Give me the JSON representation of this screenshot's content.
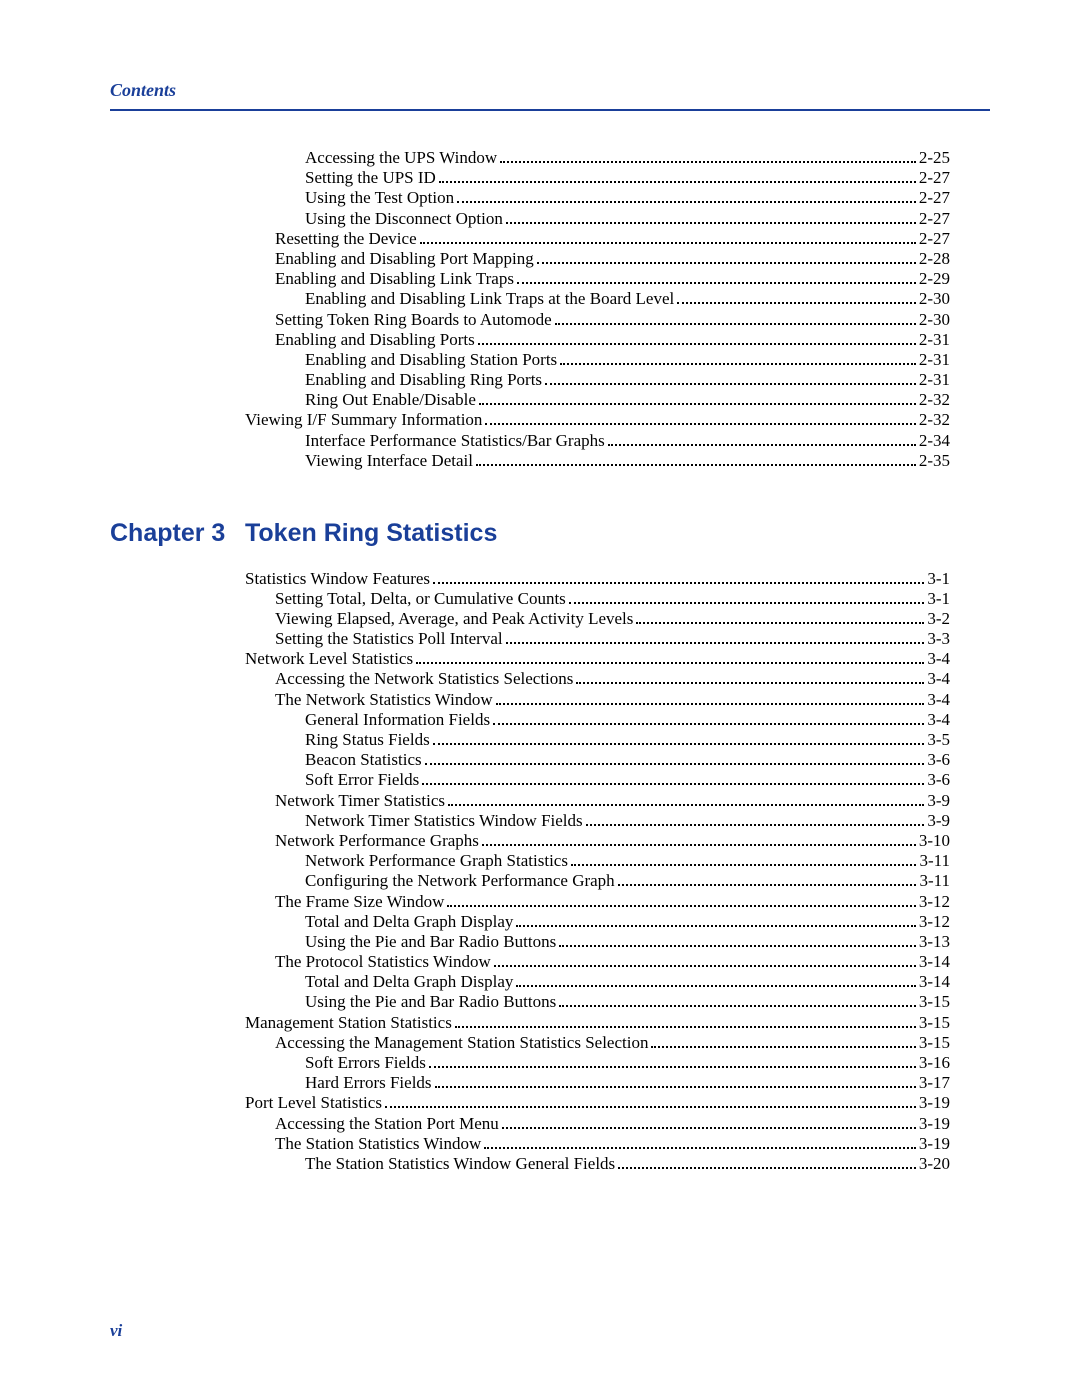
{
  "header": {
    "label": "Contents"
  },
  "footer": {
    "pageNumber": "vi"
  },
  "colors": {
    "accent": "#1a3f99",
    "text": "#000000",
    "background": "#ffffff"
  },
  "section1": {
    "entries": [
      {
        "indent": 2,
        "title": "Accessing the UPS Window",
        "page": "2-25"
      },
      {
        "indent": 2,
        "title": "Setting the UPS ID",
        "page": "2-27"
      },
      {
        "indent": 2,
        "title": "Using the Test Option",
        "page": "2-27"
      },
      {
        "indent": 2,
        "title": "Using the Disconnect Option",
        "page": "2-27"
      },
      {
        "indent": 1,
        "title": "Resetting the Device",
        "page": "2-27"
      },
      {
        "indent": 1,
        "title": "Enabling and Disabling Port Mapping",
        "page": "2-28"
      },
      {
        "indent": 1,
        "title": "Enabling and Disabling Link Traps",
        "page": "2-29"
      },
      {
        "indent": 2,
        "title": "Enabling and Disabling Link Traps at the Board Level",
        "page": "2-30"
      },
      {
        "indent": 1,
        "title": "Setting Token Ring Boards to Automode",
        "page": "2-30"
      },
      {
        "indent": 1,
        "title": "Enabling and Disabling Ports",
        "page": "2-31"
      },
      {
        "indent": 2,
        "title": "Enabling and Disabling Station Ports",
        "page": "2-31"
      },
      {
        "indent": 2,
        "title": "Enabling and Disabling Ring Ports",
        "page": "2-31"
      },
      {
        "indent": 2,
        "title": "Ring Out Enable/Disable",
        "page": "2-32"
      },
      {
        "indent": 0,
        "title": "Viewing I/F Summary Information",
        "page": "2-32"
      },
      {
        "indent": 2,
        "title": "Interface Performance Statistics/Bar Graphs",
        "page": "2-34"
      },
      {
        "indent": 2,
        "title": "Viewing Interface Detail",
        "page": "2-35"
      }
    ]
  },
  "chapter": {
    "label": "Chapter 3",
    "title": "Token Ring Statistics"
  },
  "section2": {
    "entries": [
      {
        "indent": 0,
        "title": "Statistics Window Features",
        "page": "3-1"
      },
      {
        "indent": 1,
        "title": "Setting Total, Delta, or Cumulative Counts",
        "page": "3-1"
      },
      {
        "indent": 1,
        "title": "Viewing Elapsed, Average, and Peak Activity Levels",
        "page": "3-2"
      },
      {
        "indent": 1,
        "title": "Setting the Statistics Poll Interval",
        "page": "3-3"
      },
      {
        "indent": 0,
        "title": "Network Level Statistics",
        "page": "3-4"
      },
      {
        "indent": 1,
        "title": "Accessing the Network Statistics Selections",
        "page": "3-4"
      },
      {
        "indent": 1,
        "title": "The Network Statistics Window",
        "page": "3-4"
      },
      {
        "indent": 2,
        "title": "General Information Fields",
        "page": "3-4"
      },
      {
        "indent": 2,
        "title": "Ring Status Fields",
        "page": "3-5"
      },
      {
        "indent": 2,
        "title": "Beacon Statistics",
        "page": "3-6"
      },
      {
        "indent": 2,
        "title": "Soft Error Fields",
        "page": "3-6"
      },
      {
        "indent": 1,
        "title": "Network Timer Statistics",
        "page": "3-9"
      },
      {
        "indent": 2,
        "title": "Network Timer Statistics Window Fields",
        "page": "3-9"
      },
      {
        "indent": 1,
        "title": "Network Performance Graphs",
        "page": "3-10"
      },
      {
        "indent": 2,
        "title": "Network Performance Graph Statistics",
        "page": "3-11"
      },
      {
        "indent": 2,
        "title": "Configuring the Network Performance Graph",
        "page": "3-11"
      },
      {
        "indent": 1,
        "title": "The Frame Size Window",
        "page": "3-12"
      },
      {
        "indent": 2,
        "title": "Total and Delta Graph Display",
        "page": "3-12"
      },
      {
        "indent": 2,
        "title": "Using the Pie and Bar Radio Buttons",
        "page": "3-13"
      },
      {
        "indent": 1,
        "title": "The Protocol Statistics Window",
        "page": "3-14"
      },
      {
        "indent": 2,
        "title": "Total and Delta Graph Display",
        "page": "3-14"
      },
      {
        "indent": 2,
        "title": "Using the Pie and Bar Radio Buttons",
        "page": "3-15"
      },
      {
        "indent": 0,
        "title": "Management Station Statistics",
        "page": "3-15"
      },
      {
        "indent": 1,
        "title": "Accessing the Management Station Statistics Selection",
        "page": "3-15"
      },
      {
        "indent": 2,
        "title": "Soft Errors Fields",
        "page": "3-16"
      },
      {
        "indent": 2,
        "title": "Hard Errors Fields",
        "page": "3-17"
      },
      {
        "indent": 0,
        "title": "Port Level Statistics",
        "page": "3-19"
      },
      {
        "indent": 1,
        "title": "Accessing the Station Port Menu",
        "page": "3-19"
      },
      {
        "indent": 1,
        "title": "The Station Statistics Window",
        "page": "3-19"
      },
      {
        "indent": 2,
        "title": "The Station Statistics Window General Fields",
        "page": "3-20"
      }
    ]
  }
}
